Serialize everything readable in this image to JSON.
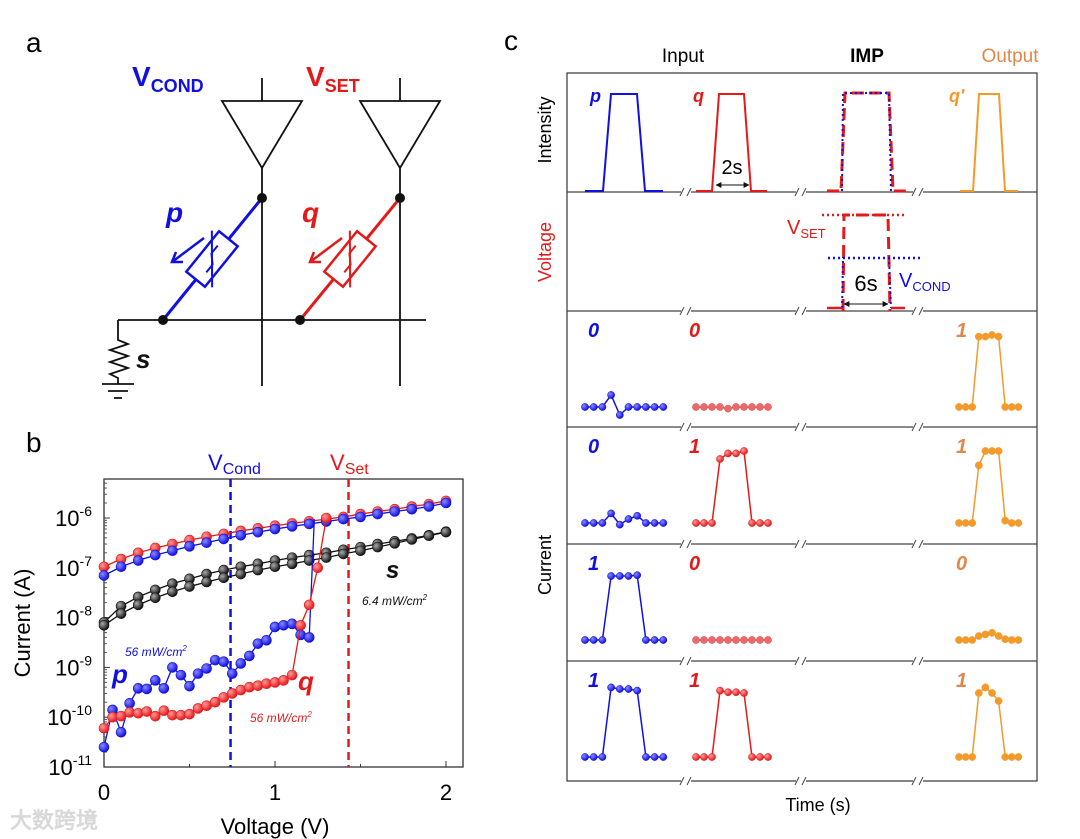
{
  "panels": {
    "a": "a",
    "b": "b",
    "c": "c"
  },
  "circuit": {
    "v_cond": {
      "main": "V",
      "sub": "COND"
    },
    "v_set": {
      "main": "V",
      "sub": "SET"
    },
    "p": "p",
    "q": "q",
    "s": "s"
  },
  "colors": {
    "blue": "#1010e0",
    "red": "#e41a1a",
    "black": "#111111",
    "orange": "#f39a2b",
    "light_red": "#e25555"
  },
  "chart_data": [
    {
      "type": "scatter",
      "panel": "b",
      "xlabel": "Voltage (V)",
      "ylabel": "Current (A)",
      "xlim": [
        0,
        2.1
      ],
      "ylim": [
        1e-11,
        6e-06
      ],
      "yscale": "log",
      "xticks": [
        "0",
        "1",
        "2"
      ],
      "yticks": [
        {
          "base": "10",
          "exp": "-6"
        },
        {
          "base": "10",
          "exp": "-7"
        },
        {
          "base": "10",
          "exp": "-8"
        },
        {
          "base": "10",
          "exp": "-9"
        },
        {
          "base": "10",
          "exp": "-10"
        },
        {
          "base": "10",
          "exp": "-11"
        }
      ],
      "vlines": [
        {
          "x": 0.74,
          "label_main": "V",
          "label_sub": "Cond",
          "color": "#1010e0"
        },
        {
          "x": 1.43,
          "label_main": "V",
          "label_sub": "Set",
          "color": "#e41a1a"
        }
      ],
      "annotations": {
        "p": "p",
        "q": "q",
        "s": "s",
        "p_intensity": "56 mW/cm",
        "q_intensity": "56 mW/cm",
        "s_intensity": "6.4 mW/cm",
        "unit_exp": "2"
      },
      "series": [
        {
          "name": "q-high",
          "color": "#e41a1a",
          "x0": 0,
          "dx": 0.1,
          "values": [
            1.05e-07,
            1.5e-07,
            2e-07,
            2.5e-07,
            3e-07,
            3.6e-07,
            4.2e-07,
            4.8e-07,
            5.5e-07,
            6.2e-07,
            7e-07,
            7.8e-07,
            8.6e-07,
            9.5e-07,
            1.05e-06,
            1.2e-06,
            1.35e-06,
            1.5e-06,
            1.7e-06,
            1.9e-06,
            2.2e-06
          ]
        },
        {
          "name": "p-high",
          "color": "#1010e0",
          "x0": 0,
          "dx": 0.1,
          "values": [
            7e-08,
            1.05e-07,
            1.4e-07,
            1.8e-07,
            2.2e-07,
            2.7e-07,
            3.2e-07,
            3.8e-07,
            4.5e-07,
            5.2e-07,
            6e-07,
            6.8e-07,
            7.6e-07,
            8.5e-07,
            9.5e-07,
            1.05e-06,
            1.2e-06,
            1.35e-06,
            1.5e-06,
            1.7e-06,
            2e-06
          ]
        },
        {
          "name": "s-a",
          "color": "#111111",
          "x0": 0,
          "dx": 0.1,
          "values": [
            8e-09,
            1.7e-08,
            2.6e-08,
            3.6e-08,
            4.8e-08,
            6e-08,
            7.5e-08,
            9e-08,
            1.05e-07,
            1.2e-07,
            1.4e-07,
            1.6e-07,
            1.8e-07,
            2e-07,
            2.3e-07,
            2.6e-07,
            3e-07,
            3.4e-07,
            3.9e-07,
            4.5e-07,
            5.3e-07
          ]
        },
        {
          "name": "s-b",
          "color": "#111111",
          "x0": 0,
          "dx": 0.1,
          "values": [
            7e-09,
            1.2e-08,
            1.8e-08,
            2.5e-08,
            3.3e-08,
            4.2e-08,
            5.2e-08,
            6.3e-08,
            7.5e-08,
            9e-08,
            1.05e-07,
            1.2e-07,
            1.4e-07,
            1.6e-07,
            1.9e-07,
            2.2e-07,
            2.6e-07,
            3.1e-07,
            3.7e-07,
            4.4e-07,
            5.2e-07
          ]
        },
        {
          "name": "p-low",
          "color": "#1010e0",
          "x0": 0,
          "dx": 0.05,
          "values": [
            2.5e-11,
            1.4e-10,
            5e-11,
            1.9e-10,
            3.8e-10,
            3.7e-10,
            5.5e-10,
            3.8e-10,
            1e-09,
            7e-10,
            4.2e-10,
            7.5e-10,
            9.5e-10,
            1.4e-09,
            1.3e-09,
            7.5e-10,
            1.2e-09,
            1.7e-09,
            3e-09,
            3.5e-09,
            6.5e-09,
            7e-09,
            7.5e-09,
            4.5e-09,
            4e-09
          ],
          "jump_to": {
            "x": 1.23,
            "y": 9.5e-07
          }
        },
        {
          "name": "q-low",
          "color": "#e41a1a",
          "x0": 0,
          "dx": 0.05,
          "values": [
            6e-11,
            1e-10,
            1.05e-10,
            1.25e-10,
            1.2e-10,
            1.3e-10,
            1.05e-10,
            1.35e-10,
            1.1e-10,
            1.1e-10,
            1.15e-10,
            1.5e-10,
            1.7e-10,
            2e-10,
            2.5e-10,
            3e-10,
            3.5e-10,
            4e-10,
            4.3e-10,
            4.7e-10,
            5e-10,
            5.5e-10,
            7e-10,
            7e-09,
            1.8e-08,
            1e-07,
            1e-06
          ]
        }
      ]
    },
    {
      "type": "line",
      "panel": "c",
      "headers": {
        "input": "Input",
        "imp": "IMP",
        "output": "Output"
      },
      "row_labels": {
        "intensity": "Intensity",
        "voltage": "Voltage",
        "current": "Current"
      },
      "xlabel": "Time (s)",
      "intensity_labels": {
        "p": "p",
        "q": "q",
        "out": "q'"
      },
      "pulse_width": "2s",
      "imp_duration": "6s",
      "v_set": {
        "main": "V",
        "sub": "SET"
      },
      "v_cond": {
        "main": "V",
        "sub": "COND"
      },
      "current_rows": [
        {
          "p": {
            "label": "0",
            "levels": [
              0.05,
              0.05,
              0.05,
              0.2,
              -0.05,
              0.05,
              0.05,
              0.05,
              0.05,
              0.05
            ]
          },
          "q": {
            "label": "0",
            "levels": [
              0.05,
              0.05,
              0.05,
              0.05,
              0.03,
              0.05,
              0.05,
              0.05,
              0.05,
              0.05
            ]
          },
          "out": {
            "label": "1",
            "levels": [
              0.05,
              0.05,
              0.05,
              0.93,
              0.93,
              0.95,
              0.93,
              0.05,
              0.05,
              0.05
            ]
          }
        },
        {
          "p": {
            "label": "0",
            "levels": [
              0.05,
              0.05,
              0.05,
              0.17,
              0.03,
              0.1,
              0.14,
              0.05,
              0.05,
              0.05
            ]
          },
          "q": {
            "label": "1",
            "levels": [
              0.05,
              0.05,
              0.05,
              0.85,
              0.92,
              0.92,
              0.95,
              0.05,
              0.05,
              0.05
            ]
          },
          "out": {
            "label": "1",
            "levels": [
              0.05,
              0.05,
              0.05,
              0.77,
              0.95,
              0.95,
              0.95,
              0.08,
              0.05,
              0.05
            ]
          }
        },
        {
          "p": {
            "label": "1",
            "levels": [
              0.05,
              0.05,
              0.05,
              0.85,
              0.85,
              0.85,
              0.86,
              0.05,
              0.05,
              0.05
            ]
          },
          "q": {
            "label": "0",
            "levels": [
              0.05,
              0.05,
              0.05,
              0.05,
              0.05,
              0.05,
              0.05,
              0.05,
              0.05,
              0.05
            ]
          },
          "out": {
            "label": "0",
            "levels": [
              0.05,
              0.05,
              0.05,
              0.1,
              0.12,
              0.14,
              0.1,
              0.06,
              0.05,
              0.05
            ]
          }
        },
        {
          "p": {
            "label": "1",
            "levels": [
              0.05,
              0.05,
              0.05,
              0.92,
              0.9,
              0.9,
              0.88,
              0.05,
              0.05,
              0.05
            ]
          },
          "q": {
            "label": "1",
            "levels": [
              0.05,
              0.05,
              0.05,
              0.88,
              0.86,
              0.86,
              0.85,
              0.05,
              0.05,
              0.05
            ]
          },
          "out": {
            "label": "1",
            "levels": [
              0.05,
              0.05,
              0.05,
              0.85,
              0.92,
              0.85,
              0.75,
              0.05,
              0.05,
              0.05
            ]
          }
        }
      ]
    }
  ],
  "watermark": "大数跨境"
}
